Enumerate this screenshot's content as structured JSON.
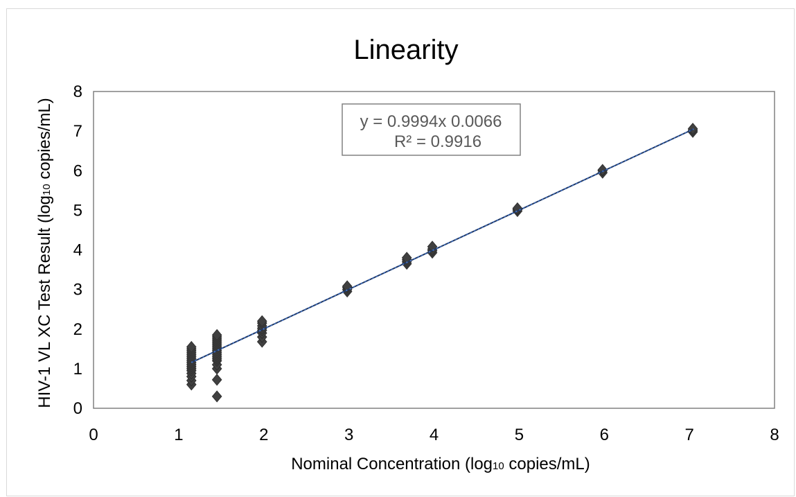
{
  "chart_data": {
    "type": "scatter",
    "title": "Linearity",
    "xlabel_main": "Nominal Concentration (log",
    "xlabel_sub": "10",
    "xlabel_tail": " copies/mL)",
    "ylabel_main": "HIV-1 VL XC Test Result (log",
    "ylabel_sub": "10",
    "ylabel_tail": " copies/mL)",
    "xlim": [
      0,
      8
    ],
    "ylim": [
      0,
      8
    ],
    "xticks": [
      "0",
      "1",
      "2",
      "3",
      "4",
      "5",
      "6",
      "7",
      "8"
    ],
    "yticks": [
      "0",
      "1",
      "2",
      "3",
      "4",
      "5",
      "6",
      "7",
      "8"
    ],
    "grid": false,
    "legend": "none",
    "trendline": {
      "equation": "y = 0.9994x 0.0066",
      "r_squared": "R² = 0.9916",
      "slope": 0.9994,
      "intercept": 0.0066,
      "x_range": [
        1.15,
        7.05
      ],
      "color": "#4472c4"
    },
    "marker_color": "#404040",
    "points": [
      [
        1.15,
        0.6
      ],
      [
        1.15,
        0.7
      ],
      [
        1.15,
        0.8
      ],
      [
        1.15,
        0.88
      ],
      [
        1.15,
        0.95
      ],
      [
        1.15,
        1.0
      ],
      [
        1.15,
        1.05
      ],
      [
        1.15,
        1.1
      ],
      [
        1.15,
        1.15
      ],
      [
        1.15,
        1.2
      ],
      [
        1.15,
        1.25
      ],
      [
        1.15,
        1.3
      ],
      [
        1.15,
        1.35
      ],
      [
        1.15,
        1.4
      ],
      [
        1.15,
        1.45
      ],
      [
        1.15,
        1.5
      ],
      [
        1.15,
        1.55
      ],
      [
        1.45,
        0.3
      ],
      [
        1.45,
        0.72
      ],
      [
        1.45,
        1.0
      ],
      [
        1.45,
        1.1
      ],
      [
        1.45,
        1.2
      ],
      [
        1.45,
        1.25
      ],
      [
        1.45,
        1.3
      ],
      [
        1.45,
        1.35
      ],
      [
        1.45,
        1.4
      ],
      [
        1.45,
        1.45
      ],
      [
        1.45,
        1.5
      ],
      [
        1.45,
        1.55
      ],
      [
        1.45,
        1.6
      ],
      [
        1.45,
        1.65
      ],
      [
        1.45,
        1.7
      ],
      [
        1.45,
        1.75
      ],
      [
        1.45,
        1.8
      ],
      [
        1.45,
        1.85
      ],
      [
        1.98,
        1.68
      ],
      [
        1.98,
        1.8
      ],
      [
        1.98,
        1.9
      ],
      [
        1.98,
        1.97
      ],
      [
        1.98,
        2.02
      ],
      [
        1.98,
        2.08
      ],
      [
        1.98,
        2.15
      ],
      [
        1.98,
        2.2
      ],
      [
        2.98,
        2.95
      ],
      [
        2.98,
        3.0
      ],
      [
        2.98,
        3.05
      ],
      [
        2.98,
        3.08
      ],
      [
        3.68,
        3.65
      ],
      [
        3.68,
        3.7
      ],
      [
        3.68,
        3.75
      ],
      [
        3.68,
        3.8
      ],
      [
        3.98,
        3.93
      ],
      [
        3.98,
        3.98
      ],
      [
        3.98,
        4.02
      ],
      [
        3.98,
        4.08
      ],
      [
        4.98,
        4.98
      ],
      [
        4.98,
        5.02
      ],
      [
        4.98,
        5.05
      ],
      [
        5.98,
        5.95
      ],
      [
        5.98,
        6.0
      ],
      [
        5.98,
        6.02
      ],
      [
        7.04,
        6.98
      ],
      [
        7.04,
        7.02
      ],
      [
        7.04,
        7.06
      ]
    ]
  }
}
